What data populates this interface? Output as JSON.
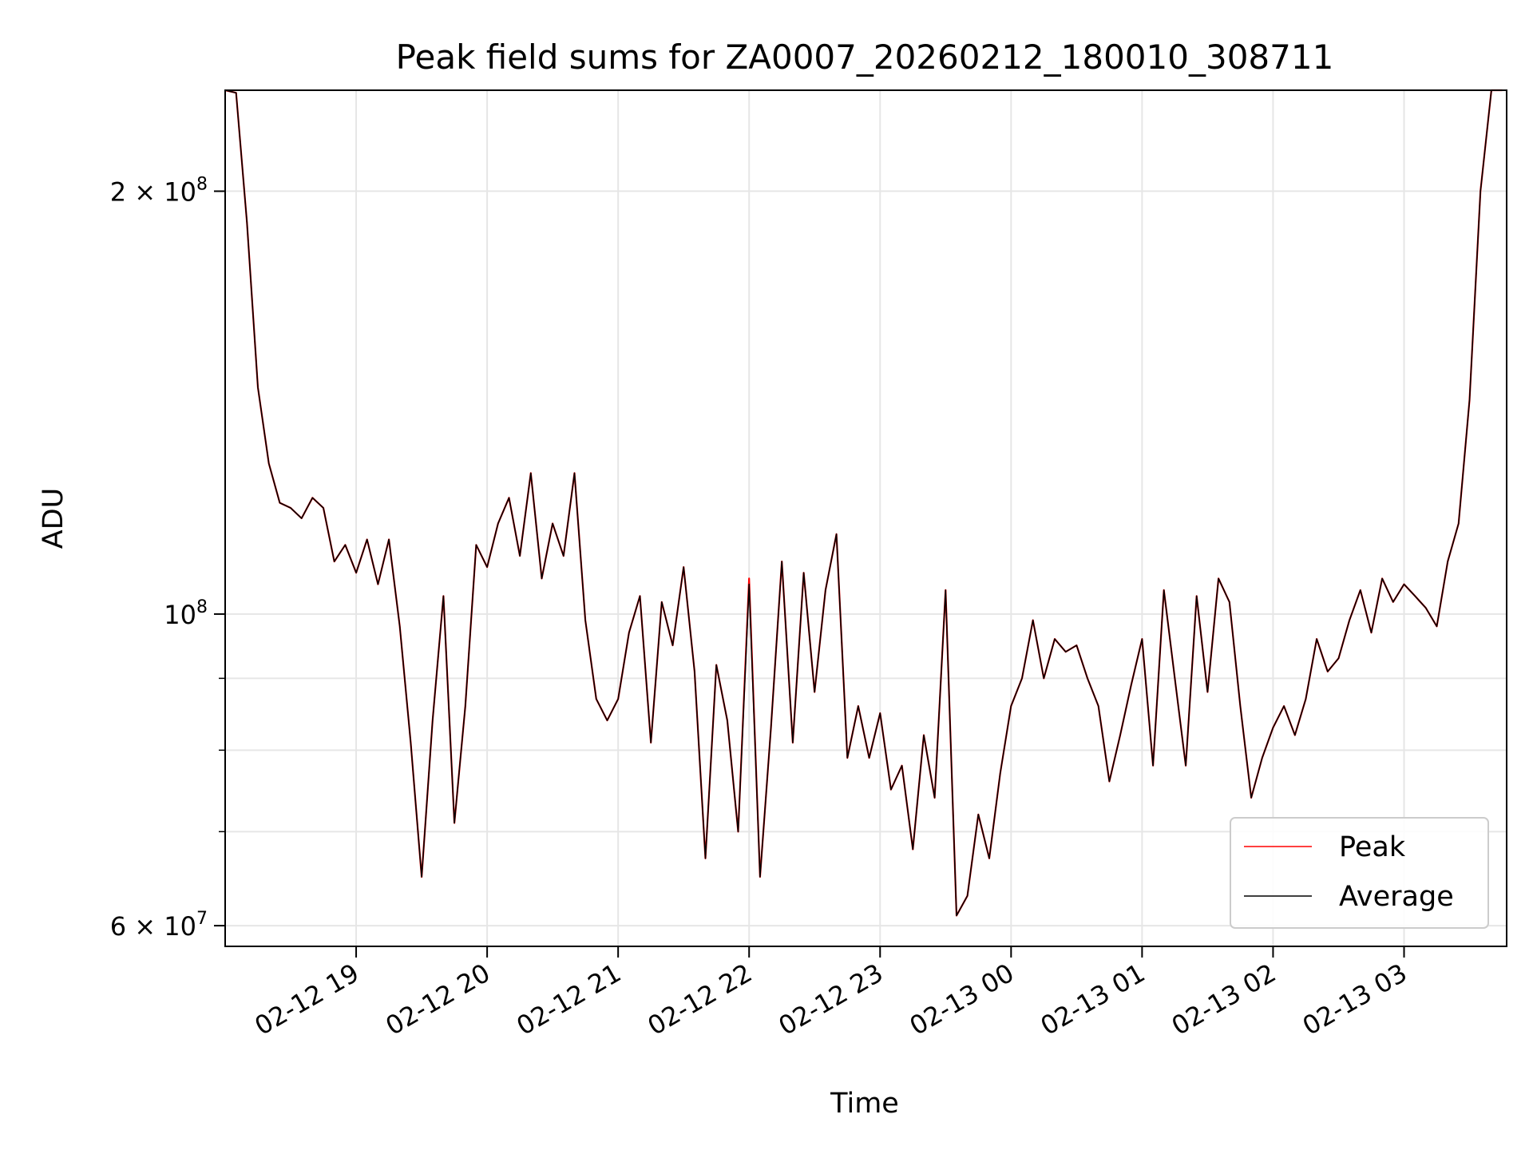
{
  "chart_data": {
    "type": "line",
    "title": "Peak field sums for ZA0007_20260212_180010_308711",
    "xlabel": "Time",
    "ylabel": "ADU",
    "y_scale": "log",
    "xlim": [
      "2026-02-12T18:00:00",
      "2026-02-13T03:47:00"
    ],
    "ylim": [
      58000000,
      236000000
    ],
    "grid": true,
    "legend_position": "lower-right",
    "x_ticks": [
      {
        "t": "2026-02-12T19:00:00",
        "label": "02-12 19"
      },
      {
        "t": "2026-02-12T20:00:00",
        "label": "02-12 20"
      },
      {
        "t": "2026-02-12T21:00:00",
        "label": "02-12 21"
      },
      {
        "t": "2026-02-12T22:00:00",
        "label": "02-12 22"
      },
      {
        "t": "2026-02-12T23:00:00",
        "label": "02-12 23"
      },
      {
        "t": "2026-02-13T00:00:00",
        "label": "02-13 00"
      },
      {
        "t": "2026-02-13T01:00:00",
        "label": "02-13 01"
      },
      {
        "t": "2026-02-13T02:00:00",
        "label": "02-13 02"
      },
      {
        "t": "2026-02-13T03:00:00",
        "label": "02-13 03"
      }
    ],
    "y_major_ticks": [
      {
        "v": 60000000,
        "base": "6 × 10",
        "exp": "7"
      },
      {
        "v": 100000000,
        "base": "10",
        "exp": "8"
      },
      {
        "v": 200000000,
        "base": "2 × 10",
        "exp": "8"
      }
    ],
    "y_minor_ticks": [
      70000000,
      80000000,
      90000000
    ],
    "x": [
      "2026-02-12T18:00:00",
      "2026-02-12T18:05:00",
      "2026-02-12T18:10:00",
      "2026-02-12T18:15:00",
      "2026-02-12T18:20:00",
      "2026-02-12T18:25:00",
      "2026-02-12T18:30:00",
      "2026-02-12T18:35:00",
      "2026-02-12T18:40:00",
      "2026-02-12T18:45:00",
      "2026-02-12T18:50:00",
      "2026-02-12T18:55:00",
      "2026-02-12T19:00:00",
      "2026-02-12T19:05:00",
      "2026-02-12T19:10:00",
      "2026-02-12T19:15:00",
      "2026-02-12T19:20:00",
      "2026-02-12T19:25:00",
      "2026-02-12T19:30:00",
      "2026-02-12T19:35:00",
      "2026-02-12T19:40:00",
      "2026-02-12T19:45:00",
      "2026-02-12T19:50:00",
      "2026-02-12T19:55:00",
      "2026-02-12T20:00:00",
      "2026-02-12T20:05:00",
      "2026-02-12T20:10:00",
      "2026-02-12T20:15:00",
      "2026-02-12T20:20:00",
      "2026-02-12T20:25:00",
      "2026-02-12T20:30:00",
      "2026-02-12T20:35:00",
      "2026-02-12T20:40:00",
      "2026-02-12T20:45:00",
      "2026-02-12T20:50:00",
      "2026-02-12T20:55:00",
      "2026-02-12T21:00:00",
      "2026-02-12T21:05:00",
      "2026-02-12T21:10:00",
      "2026-02-12T21:15:00",
      "2026-02-12T21:20:00",
      "2026-02-12T21:25:00",
      "2026-02-12T21:30:00",
      "2026-02-12T21:35:00",
      "2026-02-12T21:40:00",
      "2026-02-12T21:45:00",
      "2026-02-12T21:50:00",
      "2026-02-12T21:55:00",
      "2026-02-12T22:00:00",
      "2026-02-12T22:05:00",
      "2026-02-12T22:10:00",
      "2026-02-12T22:15:00",
      "2026-02-12T22:20:00",
      "2026-02-12T22:25:00",
      "2026-02-12T22:30:00",
      "2026-02-12T22:35:00",
      "2026-02-12T22:40:00",
      "2026-02-12T22:45:00",
      "2026-02-12T22:50:00",
      "2026-02-12T22:55:00",
      "2026-02-12T23:00:00",
      "2026-02-12T23:05:00",
      "2026-02-12T23:10:00",
      "2026-02-12T23:15:00",
      "2026-02-12T23:20:00",
      "2026-02-12T23:25:00",
      "2026-02-12T23:30:00",
      "2026-02-12T23:35:00",
      "2026-02-12T23:40:00",
      "2026-02-12T23:45:00",
      "2026-02-12T23:50:00",
      "2026-02-12T23:55:00",
      "2026-02-13T00:00:00",
      "2026-02-13T00:05:00",
      "2026-02-13T00:10:00",
      "2026-02-13T00:15:00",
      "2026-02-13T00:20:00",
      "2026-02-13T00:25:00",
      "2026-02-13T00:30:00",
      "2026-02-13T00:35:00",
      "2026-02-13T00:40:00",
      "2026-02-13T00:45:00",
      "2026-02-13T00:50:00",
      "2026-02-13T00:55:00",
      "2026-02-13T01:00:00",
      "2026-02-13T01:05:00",
      "2026-02-13T01:10:00",
      "2026-02-13T01:15:00",
      "2026-02-13T01:20:00",
      "2026-02-13T01:25:00",
      "2026-02-13T01:30:00",
      "2026-02-13T01:35:00",
      "2026-02-13T01:40:00",
      "2026-02-13T01:45:00",
      "2026-02-13T01:50:00",
      "2026-02-13T01:55:00",
      "2026-02-13T02:00:00",
      "2026-02-13T02:05:00",
      "2026-02-13T02:10:00",
      "2026-02-13T02:15:00",
      "2026-02-13T02:20:00",
      "2026-02-13T02:25:00",
      "2026-02-13T02:30:00",
      "2026-02-13T02:35:00",
      "2026-02-13T02:40:00",
      "2026-02-13T02:45:00",
      "2026-02-13T02:50:00",
      "2026-02-13T02:55:00",
      "2026-02-13T03:00:00",
      "2026-02-13T03:05:00",
      "2026-02-13T03:10:00",
      "2026-02-13T03:15:00",
      "2026-02-13T03:20:00",
      "2026-02-13T03:25:00",
      "2026-02-13T03:30:00",
      "2026-02-13T03:35:00",
      "2026-02-13T03:40:00",
      "2026-02-13T03:45:00"
    ],
    "series": [
      {
        "name": "Peak",
        "color": "#ff0000",
        "values": [
          236000000,
          235000000,
          190000000,
          145000000,
          128000000,
          120000000,
          119000000,
          117000000,
          121000000,
          119000000,
          109000000,
          112000000,
          107000000,
          113000000,
          105000000,
          113000000,
          98000000,
          81000000,
          65000000,
          84000000,
          103000000,
          71000000,
          86000000,
          112000000,
          108000000,
          116000000,
          121000000,
          110000000,
          126000000,
          106000000,
          116000000,
          110000000,
          126000000,
          99000000,
          87000000,
          84000000,
          87000000,
          97000000,
          103000000,
          81000000,
          102000000,
          95000000,
          108000000,
          91000000,
          67000000,
          92000000,
          84000000,
          70000000,
          106000000,
          65000000,
          83000000,
          109000000,
          81000000,
          107000000,
          88000000,
          104000000,
          114000000,
          79000000,
          86000000,
          79000000,
          85000000,
          75000000,
          78000000,
          68000000,
          82000000,
          74000000,
          104000000,
          61000000,
          63000000,
          72000000,
          67000000,
          77000000,
          86000000,
          90000000,
          99000000,
          90000000,
          96000000,
          94000000,
          95000000,
          90000000,
          86000000,
          76000000,
          82000000,
          89000000,
          96000000,
          78000000,
          104000000,
          90000000,
          78000000,
          103000000,
          88000000,
          106000000,
          102000000,
          86000000,
          74000000,
          79000000,
          83000000,
          86000000,
          82000000,
          87000000,
          96000000,
          91000000,
          93000000,
          99000000,
          104000000,
          97000000,
          106000000,
          102000000,
          105000000,
          103000000,
          101000000,
          98000000,
          109000000,
          116000000,
          142000000,
          200000000,
          236000000,
          236000000
        ]
      },
      {
        "name": "Average",
        "color": "#000000",
        "values": [
          236000000,
          235000000,
          190000000,
          145000000,
          128000000,
          120000000,
          119000000,
          117000000,
          121000000,
          119000000,
          109000000,
          112000000,
          107000000,
          113000000,
          105000000,
          113000000,
          98000000,
          81000000,
          65000000,
          84000000,
          103000000,
          71000000,
          86000000,
          112000000,
          108000000,
          116000000,
          121000000,
          110000000,
          126000000,
          106000000,
          116000000,
          110000000,
          126000000,
          99000000,
          87000000,
          84000000,
          87000000,
          97000000,
          103000000,
          81000000,
          102000000,
          95000000,
          108000000,
          91000000,
          67000000,
          92000000,
          84000000,
          70000000,
          105000000,
          65000000,
          83000000,
          109000000,
          81000000,
          107000000,
          88000000,
          104000000,
          114000000,
          79000000,
          86000000,
          79000000,
          85000000,
          75000000,
          78000000,
          68000000,
          82000000,
          74000000,
          104000000,
          61000000,
          63000000,
          72000000,
          67000000,
          77000000,
          86000000,
          90000000,
          99000000,
          90000000,
          96000000,
          94000000,
          95000000,
          90000000,
          86000000,
          76000000,
          82000000,
          89000000,
          96000000,
          78000000,
          104000000,
          90000000,
          78000000,
          103000000,
          88000000,
          106000000,
          102000000,
          86000000,
          74000000,
          79000000,
          83000000,
          86000000,
          82000000,
          87000000,
          96000000,
          91000000,
          93000000,
          99000000,
          104000000,
          97000000,
          106000000,
          102000000,
          105000000,
          103000000,
          101000000,
          98000000,
          109000000,
          116000000,
          142000000,
          200000000,
          236000000,
          236000000
        ]
      }
    ]
  }
}
